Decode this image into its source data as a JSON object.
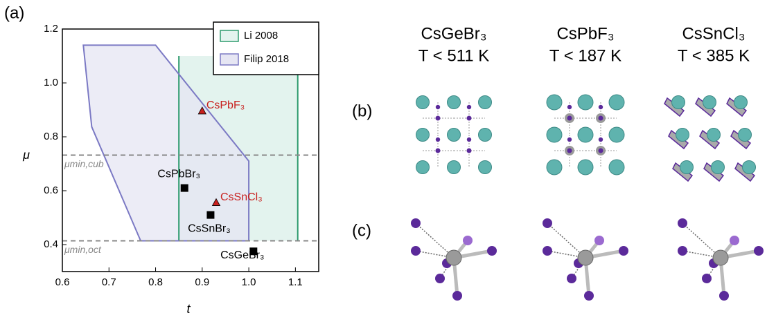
{
  "chart_data": {
    "type": "region",
    "xlabel": "t",
    "ylabel": "μ",
    "xlim": [
      0.6,
      1.15
    ],
    "ylim": [
      0.3,
      1.2
    ],
    "xticks": [
      0.6,
      0.7,
      0.8,
      0.9,
      {
        "value": 1,
        "label": "1.0"
      },
      1.1
    ],
    "yticks": [
      0.4,
      0.6,
      0.8,
      {
        "value": 1,
        "label": "1.0"
      },
      1.2
    ],
    "regions": [
      {
        "name": "Li 2008",
        "color": "#2e9b6e",
        "fill": "#e3f3ee",
        "x": [
          0.85,
          0.85,
          1.105,
          1.105
        ],
        "y": [
          0.414,
          1.1,
          1.1,
          0.414
        ]
      },
      {
        "name": "Filip 2018",
        "color": "#7b79c4",
        "fill": "#e6e6f3",
        "x": [
          0.645,
          0.8,
          1.0,
          1.0,
          0.768,
          0.663
        ],
        "y": [
          1.14,
          1.14,
          0.71,
          0.414,
          0.414,
          0.837
        ]
      }
    ],
    "hlines": [
      {
        "value": 0.732,
        "label": "μmin,cub"
      },
      {
        "value": 0.414,
        "label": "μmin,oct"
      }
    ],
    "points": [
      {
        "name": "CsPbF₃",
        "x": 0.9,
        "y": 0.895,
        "marker": "triangle",
        "color": "#c8201e"
      },
      {
        "name": "CsSnCl₃",
        "x": 0.93,
        "y": 0.555,
        "marker": "triangle",
        "color": "#c8201e"
      },
      {
        "name": "CsPbBr₃",
        "x": 0.862,
        "y": 0.61,
        "marker": "square",
        "color": "#000000"
      },
      {
        "name": "CsSnBr₃",
        "x": 0.918,
        "y": 0.51,
        "marker": "square",
        "color": "#000000"
      },
      {
        "name": "CsGeBr₃",
        "x": 1.01,
        "y": 0.375,
        "marker": "square",
        "color": "#000000"
      }
    ]
  },
  "panel_labels": {
    "a": "(a)",
    "b": "(b)",
    "c": "(c)"
  },
  "structures": [
    {
      "formula": "CsGeBr₃",
      "condition": "T < 511 K"
    },
    {
      "formula": "CsPbF₃",
      "condition": "T < 187 K"
    },
    {
      "formula": "CsSnCl₃",
      "condition": "T < 385 K"
    }
  ]
}
